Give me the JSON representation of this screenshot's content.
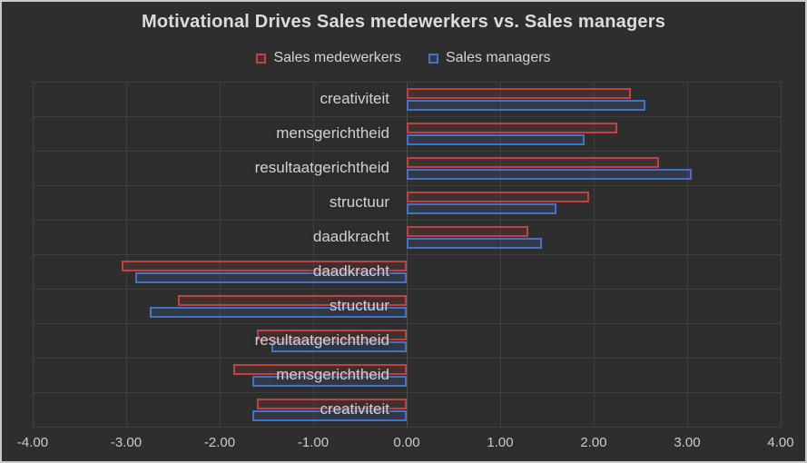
{
  "window": {
    "background_color": "#2e2e2e",
    "border_color": "#c9c9c9",
    "text_color": "#d2d2d2"
  },
  "legend": {
    "items": [
      {
        "label": "Sales medewerkers",
        "swatch": "red-outline-square-icon"
      },
      {
        "label": "Sales managers",
        "swatch": "blue-outline-square-icon"
      }
    ]
  },
  "chart_data": {
    "type": "bar",
    "orientation": "horizontal",
    "title": "Motivational Drives Sales medewerkers vs. Sales managers",
    "categories": [
      "creativiteit",
      "mensgerichtheid",
      "resultaatgerichtheid",
      "structuur",
      "daadkracht",
      "daadkracht",
      "structuur",
      "resultaatgerichtheid",
      "mensgerichtheid",
      "creativiteit"
    ],
    "series": [
      {
        "name": "Sales medewerkers",
        "color": "#bf4343",
        "fill": "rgba(191,67,67,0.13)",
        "values": [
          2.4,
          2.25,
          2.7,
          1.95,
          1.3,
          -3.05,
          -2.45,
          -1.6,
          -1.85,
          -1.6
        ]
      },
      {
        "name": "Sales managers",
        "color": "#4472c4",
        "fill": "rgba(68,114,196,0.16)",
        "values": [
          2.55,
          1.9,
          3.05,
          1.6,
          1.45,
          -2.9,
          -2.75,
          -1.45,
          -1.65,
          -1.65
        ]
      }
    ],
    "xlim": [
      -4,
      4
    ],
    "x_ticks": [
      -4,
      -3,
      -2,
      -1,
      0,
      1,
      2,
      3,
      4
    ],
    "x_tick_labels": [
      "-4.00",
      "-3.00",
      "-2.00",
      "-1.00",
      "0.00",
      "1.00",
      "2.00",
      "3.00",
      "4.00"
    ],
    "grid": true,
    "legend_position": "top-center",
    "gridline_color": "#404040"
  }
}
